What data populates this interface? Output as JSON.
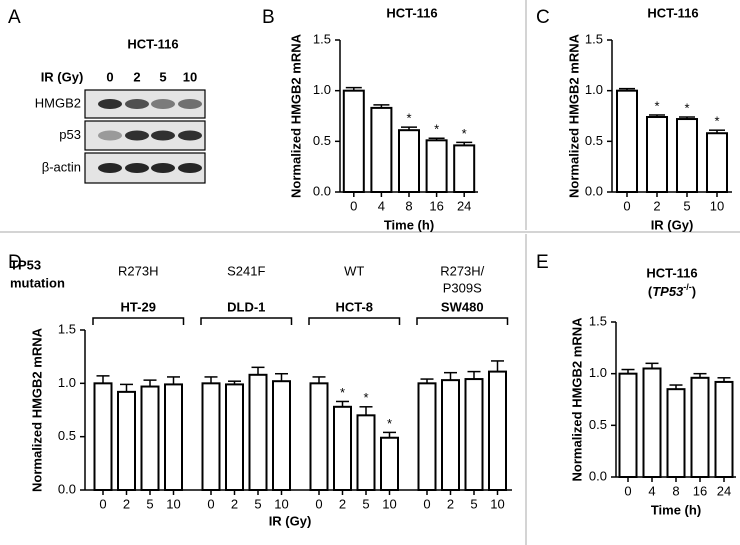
{
  "blot": {
    "panel_label": "A",
    "title": "HCT-116",
    "dose_label": "IR (Gy)",
    "doses": [
      "0",
      "2",
      "5",
      "10"
    ],
    "rows": [
      "HMGB2",
      "p53",
      "β-actin"
    ]
  },
  "chart_data": [
    {
      "type": "bar",
      "panel_label": "B",
      "title": "HCT-116",
      "y_label": "Normalized HMGB2 mRNA",
      "x_label": "Time (h)",
      "categories": [
        "0",
        "4",
        "8",
        "16",
        "24"
      ],
      "values": [
        1.0,
        0.83,
        0.61,
        0.51,
        0.46
      ],
      "errors": [
        0.03,
        0.03,
        0.03,
        0.02,
        0.03
      ],
      "significant": [
        false,
        false,
        true,
        true,
        true
      ],
      "significance_mark": "*",
      "ylim": [
        0,
        1.5
      ],
      "yticks": [
        {
          "value": 0,
          "label": "0.0"
        },
        {
          "value": 0.5,
          "label": "0.5"
        },
        {
          "value": 1,
          "label": "1.0"
        },
        {
          "value": 1.5,
          "label": "1.5"
        }
      ],
      "color": "#ffffff"
    },
    {
      "type": "bar",
      "panel_label": "C",
      "title": "HCT-116",
      "y_label": "Normalized HMGB2 mRNA",
      "x_label": "IR (Gy)",
      "categories": [
        "0",
        "2",
        "5",
        "10"
      ],
      "values": [
        1.0,
        0.74,
        0.72,
        0.58
      ],
      "errors": [
        0.02,
        0.02,
        0.02,
        0.03
      ],
      "significant": [
        false,
        true,
        true,
        true
      ],
      "significance_mark": "*",
      "ylim": [
        0,
        1.5
      ],
      "yticks": [
        {
          "value": 0,
          "label": "0.0"
        },
        {
          "value": 0.5,
          "label": "0.5"
        },
        {
          "value": 1,
          "label": "1.0"
        },
        {
          "value": 1.5,
          "label": "1.5"
        }
      ],
      "color": "#ffffff"
    },
    {
      "type": "grouped_bar",
      "panel_label": "D",
      "mutation_header": [
        "TP53",
        "mutation"
      ],
      "y_label": "Normalized HMGB2 mRNA",
      "x_label": "IR (Gy)",
      "significance_mark": "*",
      "groups": [
        {
          "mutation": [
            "R273H"
          ],
          "name": "HT-29",
          "categories": [
            "0",
            "2",
            "5",
            "10"
          ],
          "values": [
            1.0,
            0.92,
            0.97,
            0.99
          ],
          "errors": [
            0.07,
            0.07,
            0.06,
            0.07
          ],
          "significant": [
            false,
            false,
            false,
            false
          ]
        },
        {
          "mutation": [
            "S241F"
          ],
          "name": "DLD-1",
          "categories": [
            "0",
            "2",
            "5",
            "10"
          ],
          "values": [
            1.0,
            0.99,
            1.08,
            1.02
          ],
          "errors": [
            0.06,
            0.03,
            0.07,
            0.07
          ],
          "significant": [
            false,
            false,
            false,
            false
          ]
        },
        {
          "mutation": [
            "WT"
          ],
          "name": "HCT-8",
          "categories": [
            "0",
            "2",
            "5",
            "10"
          ],
          "values": [
            1.0,
            0.78,
            0.7,
            0.49
          ],
          "errors": [
            0.06,
            0.05,
            0.08,
            0.05
          ],
          "significant": [
            false,
            true,
            true,
            true
          ]
        },
        {
          "mutation": [
            "R273H/",
            "P309S"
          ],
          "name": "SW480",
          "categories": [
            "0",
            "2",
            "5",
            "10"
          ],
          "values": [
            1.0,
            1.03,
            1.04,
            1.11
          ],
          "errors": [
            0.04,
            0.07,
            0.07,
            0.1
          ],
          "significant": [
            false,
            false,
            false,
            false
          ]
        }
      ],
      "ylim": [
        0,
        1.5
      ],
      "yticks": [
        {
          "value": 0,
          "label": "0.0"
        },
        {
          "value": 0.5,
          "label": "0.5"
        },
        {
          "value": 1,
          "label": "1.0"
        },
        {
          "value": 1.5,
          "label": "1.5"
        }
      ],
      "color": "#ffffff"
    },
    {
      "type": "bar",
      "panel_label": "E",
      "title": "HCT-116",
      "subtitle_parts": [
        "(",
        "TP53",
        "-/-",
        ")"
      ],
      "y_label": "Normalized HMGB2 mRNA",
      "x_label": "Time (h)",
      "categories": [
        "0",
        "4",
        "8",
        "16",
        "24"
      ],
      "values": [
        1.0,
        1.05,
        0.85,
        0.96,
        0.92
      ],
      "errors": [
        0.04,
        0.05,
        0.04,
        0.04,
        0.04
      ],
      "significant": [
        false,
        false,
        false,
        false,
        false
      ],
      "significance_mark": "*",
      "ylim": [
        0,
        1.5
      ],
      "yticks": [
        {
          "value": 0,
          "label": "0.0"
        },
        {
          "value": 0.5,
          "label": "0.5"
        },
        {
          "value": 1,
          "label": "1.0"
        },
        {
          "value": 1.5,
          "label": "1.5"
        }
      ],
      "color": "#ffffff"
    }
  ]
}
